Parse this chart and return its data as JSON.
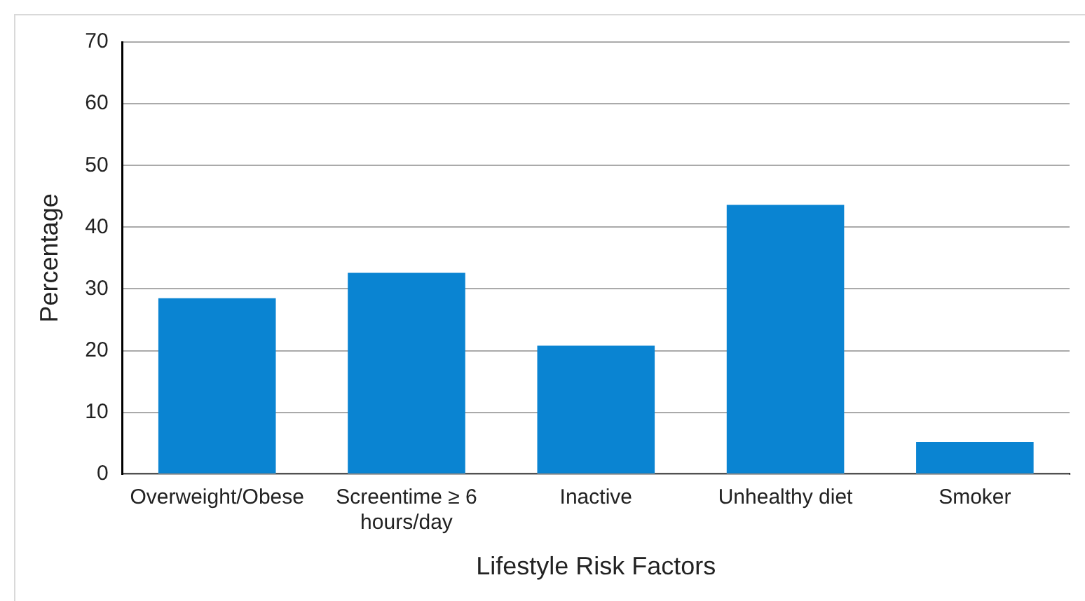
{
  "chart_data": {
    "type": "bar",
    "xlabel": "Lifestyle Risk Factors",
    "ylabel": "Percentage",
    "categories": [
      "Overweight/Obese",
      "Screentime ≥ 6 hours/day",
      "Inactive",
      "Unhealthy diet",
      "Smoker"
    ],
    "values": [
      28.5,
      32.6,
      20.8,
      43.6,
      5.2
    ],
    "color": "#0a84d2",
    "ylim": [
      0,
      70
    ],
    "yticks": [
      0,
      10,
      20,
      30,
      40,
      50,
      60,
      70
    ],
    "grid": "y"
  }
}
